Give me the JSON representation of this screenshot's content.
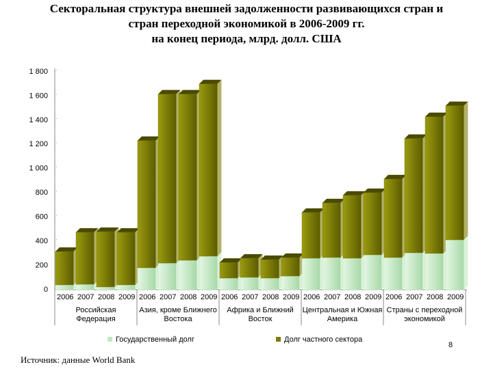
{
  "chart_data": {
    "type": "bar",
    "stacked": true,
    "title": [
      "Секторальная структура внешней задолженности развивающихся стран и",
      "стран переходной экономикой в 2006-2009 гг.",
      "на конец периода, млрд. долл. США"
    ],
    "categories": [
      "2006",
      "2007",
      "2008",
      "2009",
      "2006",
      "2007",
      "2008",
      "2009",
      "2006",
      "2007",
      "2008",
      "2009",
      "2006",
      "2007",
      "2008",
      "2009",
      "2006",
      "2007",
      "2008",
      "2009"
    ],
    "groups": [
      [
        "Российская",
        "Федерация"
      ],
      [
        "Азия, кроме Ближнего",
        "Востока"
      ],
      [
        "Африка и Ближний",
        "Восток"
      ],
      [
        "Центральная и Южная",
        "Америка"
      ],
      [
        "Страны с переходной",
        "экономикой"
      ]
    ],
    "series": [
      {
        "name": "Государственный долг",
        "color": "#bfe8bf",
        "values": [
          40,
          45,
          23,
          40,
          181,
          220,
          243,
          277,
          96,
          102,
          96,
          113,
          260,
          266,
          260,
          288,
          266,
          305,
          300,
          412
        ]
      },
      {
        "name": "Долг частного сектора",
        "color": "#7d7d05",
        "values": [
          276,
          430,
          457,
          435,
          1051,
          1396,
          1373,
          1423,
          130,
          158,
          153,
          153,
          378,
          451,
          520,
          514,
          649,
          944,
          1129,
          1108
        ]
      }
    ],
    "ylim": [
      0,
      1800
    ],
    "yticks": [
      0,
      200,
      400,
      600,
      800,
      {
        "value": 1000,
        "label": "1 000"
      },
      {
        "value": 1200,
        "label": "1 200"
      },
      {
        "value": 1400,
        "label": "1 400"
      },
      {
        "value": 1600,
        "label": "1 600"
      },
      {
        "value": 1800,
        "label": "1 800"
      }
    ],
    "legend": "bottom"
  },
  "footer": {
    "page": "8",
    "source": "Источник: данные World Bank"
  }
}
